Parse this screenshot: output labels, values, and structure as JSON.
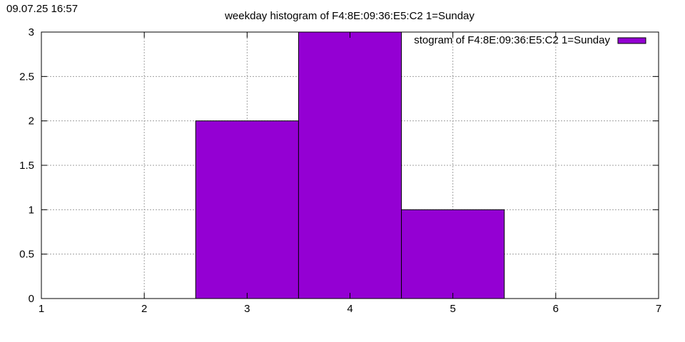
{
  "timestamp": "09.07.25 16:57",
  "chart_data": {
    "type": "bar",
    "title": "weekday histogram of F4:8E:09:36:E5:C2 1=Sunday",
    "xlabel": "",
    "ylabel": "",
    "xlim": [
      1,
      7
    ],
    "ylim": [
      0,
      3
    ],
    "x_ticks": [
      "1",
      "2",
      "3",
      "4",
      "5",
      "6",
      "7"
    ],
    "y_ticks": [
      "0",
      "0.5",
      "1",
      "1.5",
      "2",
      "2.5",
      "3"
    ],
    "bar_width": 1,
    "categories": [
      3,
      4,
      5
    ],
    "series": [
      {
        "name": "weekday histogram of F4:8E:09:36:E5:C2 1=Sunday",
        "values": [
          2,
          3,
          1
        ],
        "color": "#9400d3"
      }
    ],
    "legend_position": "top-right",
    "legend_visible_text": "stogram of F4:8E:09:36:E5:C2 1=Sunday",
    "grid": true
  }
}
